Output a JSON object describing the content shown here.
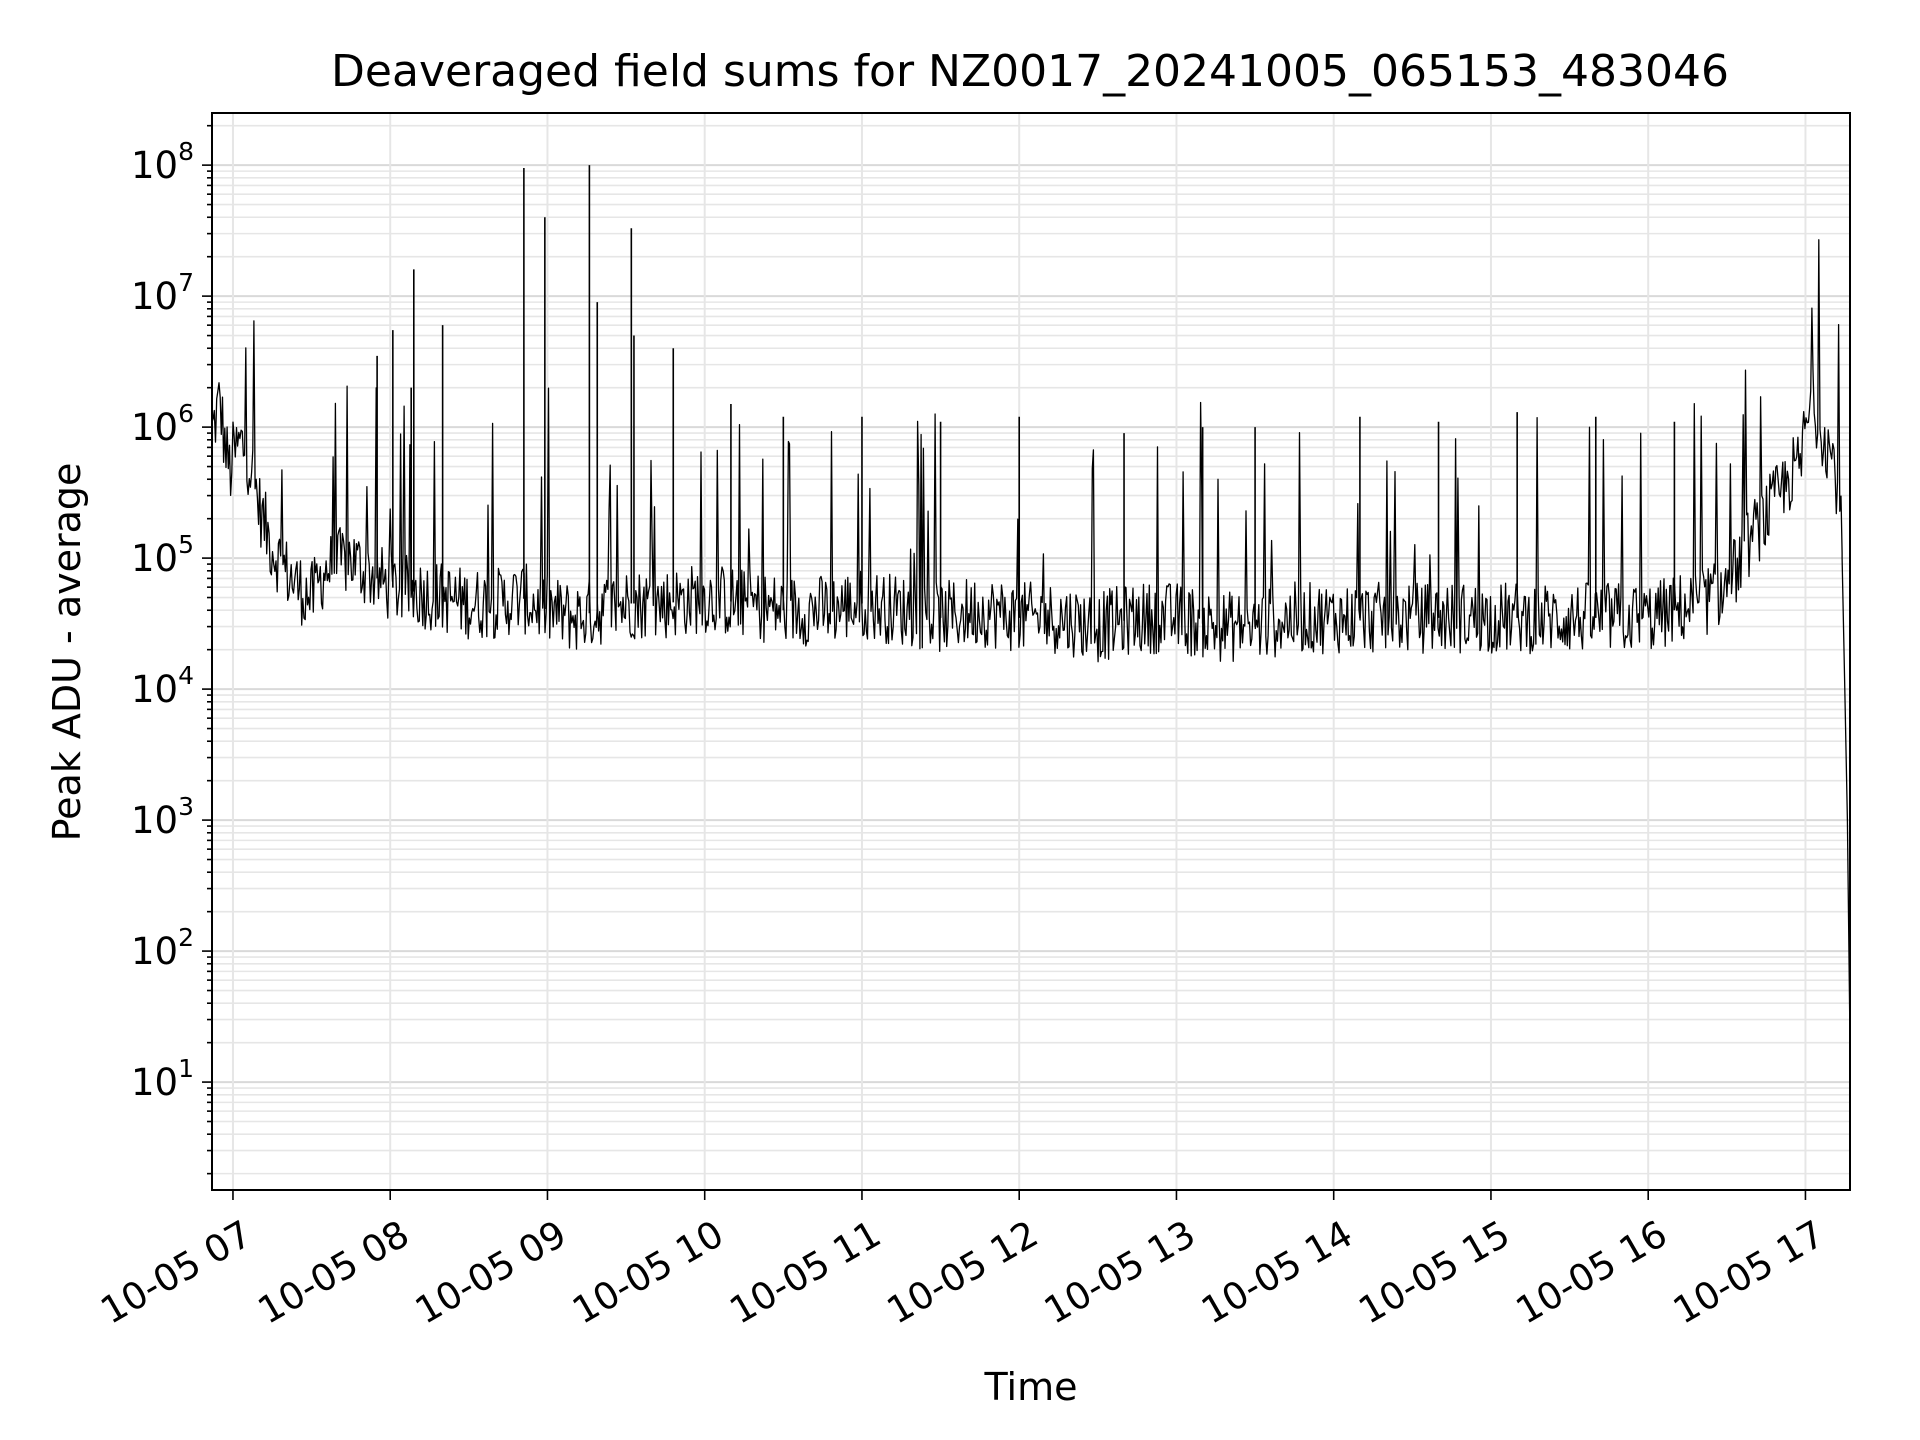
{
  "chart_data": {
    "type": "line",
    "title": "Deaveraged field sums for NZ0017_20241005_065153_483046",
    "xlabel": "Time",
    "ylabel": "Peak ADU - average",
    "yscale": "log",
    "ylim": [
      1.5,
      250000000
    ],
    "xlim": [
      "2024-10-05 06:52",
      "2024-10-05 17:17"
    ],
    "x_ticks": [
      "10-05 07",
      "10-05 08",
      "10-05 09",
      "10-05 10",
      "10-05 11",
      "10-05 12",
      "10-05 13",
      "10-05 14",
      "10-05 15",
      "10-05 16",
      "10-05 17"
    ],
    "y_ticks": [
      {
        "base": "10",
        "exp": "1",
        "value": 10
      },
      {
        "base": "10",
        "exp": "2",
        "value": 100
      },
      {
        "base": "10",
        "exp": "3",
        "value": 1000
      },
      {
        "base": "10",
        "exp": "4",
        "value": 10000
      },
      {
        "base": "10",
        "exp": "5",
        "value": 100000
      },
      {
        "base": "10",
        "exp": "6",
        "value": 1000000
      },
      {
        "base": "10",
        "exp": "7",
        "value": 10000000
      },
      {
        "base": "10",
        "exp": "8",
        "value": 100000000
      }
    ],
    "grid": true,
    "line_color": "#000000",
    "series": [
      {
        "x": [
          "2024-10-05 06:52",
          "2024-10-05 06:55",
          "2024-10-05 06:57",
          "2024-10-05 06:59",
          "2024-10-05 07:00",
          "2024-10-05 07:03",
          "2024-10-05 07:05",
          "2024-10-05 07:08",
          "2024-10-05 07:10",
          "2024-10-05 07:12",
          "2024-10-05 07:15",
          "2024-10-05 07:20",
          "2024-10-05 07:25",
          "2024-10-05 07:30",
          "2024-10-05 07:35",
          "2024-10-05 07:40",
          "2024-10-05 07:45",
          "2024-10-05 07:50",
          "2024-10-05 07:55",
          "2024-10-05 08:00",
          "2024-10-05 08:10",
          "2024-10-05 08:20",
          "2024-10-05 08:30",
          "2024-10-05 08:40",
          "2024-10-05 08:50",
          "2024-10-05 09:00",
          "2024-10-05 09:10",
          "2024-10-05 09:20",
          "2024-10-05 09:30",
          "2024-10-05 09:45",
          "2024-10-05 10:00",
          "2024-10-05 10:15",
          "2024-10-05 10:30",
          "2024-10-05 10:45",
          "2024-10-05 11:00",
          "2024-10-05 11:15",
          "2024-10-05 11:30",
          "2024-10-05 11:45",
          "2024-10-05 12:00",
          "2024-10-05 12:15",
          "2024-10-05 12:30",
          "2024-10-05 12:45",
          "2024-10-05 13:00",
          "2024-10-05 13:15",
          "2024-10-05 13:30",
          "2024-10-05 13:45",
          "2024-10-05 14:00",
          "2024-10-05 14:15",
          "2024-10-05 14:30",
          "2024-10-05 14:45",
          "2024-10-05 15:00",
          "2024-10-05 15:15",
          "2024-10-05 15:30",
          "2024-10-05 15:45",
          "2024-10-05 16:00",
          "2024-10-05 16:10",
          "2024-10-05 16:20",
          "2024-10-05 16:30",
          "2024-10-05 16:40",
          "2024-10-05 16:50",
          "2024-10-05 16:55",
          "2024-10-05 16:58",
          "2024-10-05 17:00",
          "2024-10-05 17:03",
          "2024-10-05 17:06",
          "2024-10-05 17:09",
          "2024-10-05 17:11",
          "2024-10-05 17:13",
          "2024-10-05 17:14",
          "2024-10-05 17:15",
          "2024-10-05 17:16",
          "2024-10-05 17:17"
        ],
        "y": [
          900000,
          1600000,
          700000,
          450000,
          600000,
          750000,
          650000,
          400000,
          250000,
          180000,
          120000,
          80000,
          60000,
          50000,
          80000,
          90000,
          100000,
          80000,
          70000,
          60000,
          55000,
          50000,
          45000,
          45000,
          50000,
          40000,
          35000,
          40000,
          45000,
          45000,
          50000,
          45000,
          40000,
          40000,
          45000,
          40000,
          35000,
          40000,
          35000,
          35000,
          30000,
          35000,
          35000,
          30000,
          30000,
          35000,
          35000,
          35000,
          35000,
          35000,
          35000,
          35000,
          35000,
          35000,
          35000,
          40000,
          45000,
          60000,
          150000,
          300000,
          450000,
          500000,
          1000000,
          1500000,
          1000000,
          700000,
          500000,
          300000,
          100000,
          10000,
          1000,
          20
        ]
      }
    ],
    "spikes": [
      {
        "x": "2024-10-05 07:55",
        "y": 3500000
      },
      {
        "x": "2024-10-05 08:01",
        "y": 5500000
      },
      {
        "x": "2024-10-05 08:08",
        "y": 2000000
      },
      {
        "x": "2024-10-05 08:09",
        "y": 16000000
      },
      {
        "x": "2024-10-05 08:20",
        "y": 6000000
      },
      {
        "x": "2024-10-05 08:51",
        "y": 95000000
      },
      {
        "x": "2024-10-05 08:59",
        "y": 40000000
      },
      {
        "x": "2024-10-05 09:16",
        "y": 100000000
      },
      {
        "x": "2024-10-05 09:19",
        "y": 9000000
      },
      {
        "x": "2024-10-05 09:32",
        "y": 33000000
      },
      {
        "x": "2024-10-05 09:33",
        "y": 5000000
      },
      {
        "x": "2024-10-05 09:48",
        "y": 4000000
      },
      {
        "x": "2024-10-05 10:10",
        "y": 1500000
      },
      {
        "x": "2024-10-05 10:30",
        "y": 1200000
      },
      {
        "x": "2024-10-05 11:00",
        "y": 1200000
      },
      {
        "x": "2024-10-05 11:30",
        "y": 1100000
      },
      {
        "x": "2024-10-05 12:00",
        "y": 1200000
      },
      {
        "x": "2024-10-05 12:40",
        "y": 900000
      },
      {
        "x": "2024-10-05 13:10",
        "y": 1000000
      },
      {
        "x": "2024-10-05 13:30",
        "y": 1000000
      },
      {
        "x": "2024-10-05 14:10",
        "y": 1200000
      },
      {
        "x": "2024-10-05 14:40",
        "y": 1100000
      },
      {
        "x": "2024-10-05 15:10",
        "y": 1300000
      },
      {
        "x": "2024-10-05 15:40",
        "y": 1200000
      },
      {
        "x": "2024-10-05 16:10",
        "y": 1100000
      }
    ]
  }
}
